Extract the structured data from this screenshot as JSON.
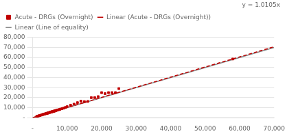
{
  "chart_data": {
    "type": "scatter",
    "annotation": "y = 1.0105x",
    "legend": "upper left",
    "grid": "y",
    "xlim": [
      0,
      70000
    ],
    "ylim": [
      0,
      80000
    ],
    "xticks": [
      {
        "value": 0,
        "label": "-"
      },
      {
        "value": 10000,
        "label": "10,000"
      },
      {
        "value": 20000,
        "label": "20,000"
      },
      {
        "value": 30000,
        "label": "30,000"
      },
      {
        "value": 40000,
        "label": "40,000"
      },
      {
        "value": 50000,
        "label": "50,000"
      },
      {
        "value": 60000,
        "label": "60,000"
      },
      {
        "value": 70000,
        "label": "70,000"
      }
    ],
    "yticks": [
      {
        "value": 0,
        "label": "-"
      },
      {
        "value": 10000,
        "label": "10,000"
      },
      {
        "value": 20000,
        "label": "20,000"
      },
      {
        "value": 30000,
        "label": "30,000"
      },
      {
        "value": 40000,
        "label": "40,000"
      },
      {
        "value": 50000,
        "label": "50,000"
      },
      {
        "value": 60000,
        "label": "60,000"
      },
      {
        "value": 70000,
        "label": "70,000"
      },
      {
        "value": 80000,
        "label": "80,000"
      }
    ],
    "series": [
      {
        "name": "Acute - DRGs (Overnight)",
        "type": "scatter",
        "color": "#c00000",
        "marker": "square",
        "x": [
          1200,
          1500,
          1800,
          2000,
          2200,
          2500,
          2700,
          2800,
          3000,
          3100,
          3300,
          3500,
          3700,
          3900,
          4000,
          4100,
          4200,
          4300,
          4400,
          4500,
          4600,
          4700,
          4800,
          4900,
          5000,
          5100,
          5200,
          5300,
          5400,
          5500,
          5600,
          5700,
          5800,
          5900,
          6000,
          6100,
          6200,
          6300,
          6400,
          6500,
          6600,
          6700,
          6800,
          7000,
          7200,
          7500,
          7800,
          8000,
          8500,
          9000,
          9500,
          10000,
          11000,
          12000,
          13000,
          14000,
          15000,
          16000,
          17000,
          18000,
          19000,
          20000,
          21000,
          22000,
          23000,
          24000,
          25000,
          58000
        ],
        "values": [
          1300,
          1600,
          1900,
          2100,
          2300,
          2600,
          2800,
          3000,
          3200,
          3300,
          3500,
          3700,
          3900,
          4100,
          4200,
          4300,
          4400,
          4500,
          4600,
          4700,
          4800,
          4900,
          5000,
          5200,
          5300,
          5400,
          5500,
          5600,
          5700,
          5800,
          5900,
          6000,
          6100,
          6200,
          6300,
          6400,
          6500,
          6600,
          6700,
          6800,
          7000,
          7100,
          7200,
          7400,
          7600,
          7900,
          8200,
          8500,
          9000,
          9500,
          10200,
          11000,
          12500,
          13500,
          15000,
          16500,
          16000,
          16200,
          20000,
          20000,
          21000,
          25000,
          24000,
          25000,
          25000,
          25000,
          29000,
          58500
        ]
      },
      {
        "name": "Linear (Acute - DRGs (Overnight))",
        "type": "line",
        "color": "#c00000",
        "line_style": "dashed",
        "x": [
          0,
          70000
        ],
        "values": [
          0,
          70735
        ]
      },
      {
        "name": "Linear (Line of equality)",
        "type": "line",
        "color": "#888888",
        "line_style": "solid",
        "x": [
          0,
          70000
        ],
        "values": [
          0,
          70000
        ]
      }
    ]
  }
}
